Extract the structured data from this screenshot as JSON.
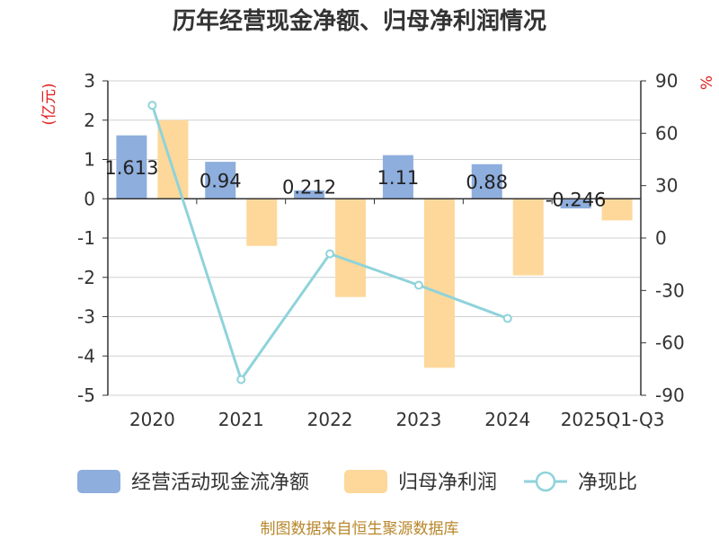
{
  "chart_data": {
    "type": "bar+line",
    "title": "历年经营现金净额、归母净利润情况",
    "categories": [
      "2020",
      "2021",
      "2022",
      "2023",
      "2024",
      "2025Q1-Q3"
    ],
    "left_axis": {
      "unit": "(亿元)",
      "ylim": [
        -5,
        3
      ],
      "ticks": [
        "3",
        "2",
        "1",
        "0",
        "-1",
        "-2",
        "-3",
        "-4",
        "-5"
      ]
    },
    "right_axis": {
      "unit": "%",
      "ylim": [
        -90,
        90
      ],
      "ticks": [
        "90",
        "60",
        "30",
        "0",
        "-30",
        "-60",
        "-90"
      ]
    },
    "series": [
      {
        "name": "经营活动现金流净额",
        "type": "bar",
        "axis": "left",
        "color": "#8eaedd",
        "values": [
          1.613,
          0.94,
          0.212,
          1.11,
          0.88,
          -0.246
        ],
        "labels": [
          "1.613",
          "0.94",
          "0.212",
          "1.11",
          "0.88",
          "-0.246"
        ]
      },
      {
        "name": "归母净利润",
        "type": "bar",
        "axis": "left",
        "color": "#fdd89a",
        "values": [
          2.0,
          -1.2,
          -2.5,
          -4.3,
          -1.95,
          -0.55
        ]
      },
      {
        "name": "净现比",
        "type": "line",
        "axis": "right",
        "color": "#8fd3da",
        "values": [
          76,
          -81,
          -9,
          -27,
          -46,
          null
        ]
      }
    ],
    "grid": true,
    "legend": "bottom"
  },
  "source": "制图数据来自恒生聚源数据库"
}
